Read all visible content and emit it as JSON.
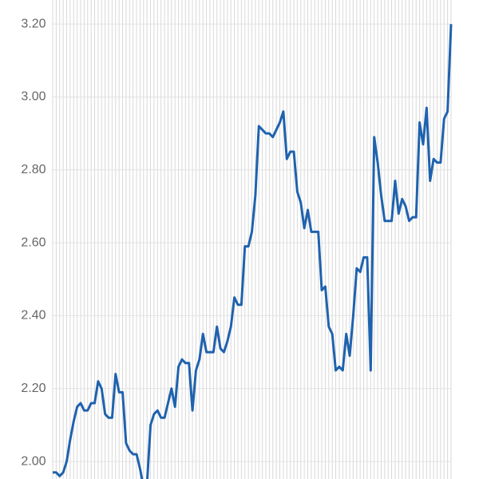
{
  "chart_data": {
    "type": "line",
    "categories": [
      null,
      null,
      null,
      null,
      null,
      null,
      null,
      null,
      null,
      null,
      null,
      null,
      null,
      null,
      null,
      null,
      null,
      null,
      null,
      null,
      null,
      null,
      null,
      null,
      null,
      null,
      null,
      null,
      null,
      null,
      null,
      null,
      null,
      null,
      null,
      null,
      null,
      null,
      null,
      null,
      null,
      null,
      null,
      null,
      null,
      null,
      null,
      null,
      null,
      null,
      null,
      null,
      null,
      null,
      null,
      null,
      null,
      null,
      null,
      null,
      null,
      null,
      null,
      null,
      null,
      null,
      null,
      null,
      null,
      null,
      null,
      null,
      null,
      null,
      null,
      null,
      null,
      null,
      null,
      null,
      null,
      null,
      null,
      null,
      null,
      null,
      null,
      null,
      null,
      null,
      null,
      null,
      null,
      null,
      null,
      null,
      null,
      null,
      null,
      null,
      null,
      null,
      null,
      null,
      null,
      null,
      null,
      null,
      null,
      null,
      null,
      null,
      null,
      null,
      null
    ],
    "series": [
      {
        "color": "#1f62ae",
        "values": [
          1.97,
          1.97,
          1.96,
          1.97,
          2.0,
          2.06,
          2.11,
          2.15,
          2.16,
          2.14,
          2.14,
          2.16,
          2.16,
          2.22,
          2.2,
          2.13,
          2.12,
          2.12,
          2.24,
          2.19,
          2.19,
          2.05,
          2.03,
          2.02,
          2.02,
          1.98,
          1.93,
          1.94,
          2.1,
          2.13,
          2.14,
          2.12,
          2.12,
          2.16,
          2.2,
          2.15,
          2.26,
          2.28,
          2.27,
          2.27,
          2.14,
          2.25,
          2.28,
          2.35,
          2.3,
          2.3,
          2.3,
          2.37,
          2.31,
          2.3,
          2.33,
          2.37,
          2.45,
          2.43,
          2.43,
          2.59,
          2.59,
          2.63,
          2.73,
          2.92,
          2.91,
          2.9,
          2.9,
          2.89,
          2.91,
          2.93,
          2.96,
          2.83,
          2.85,
          2.85,
          2.74,
          2.71,
          2.64,
          2.69,
          2.63,
          2.63,
          2.63,
          2.47,
          2.48,
          2.37,
          2.35,
          2.25,
          2.26,
          2.25,
          2.35,
          2.29,
          2.4,
          2.53,
          2.52,
          2.56,
          2.56,
          2.25,
          2.89,
          2.82,
          2.73,
          2.66,
          2.66,
          2.66,
          2.77,
          2.68,
          2.72,
          2.7,
          2.66,
          2.67,
          2.67,
          2.93,
          2.87,
          2.97,
          2.77,
          2.83,
          2.82,
          2.82,
          2.94,
          2.96,
          3.2
        ]
      }
    ],
    "ylim": [
      1.952,
      3.266
    ],
    "yticks": [
      {
        "value": 2,
        "label": "2.00"
      },
      {
        "value": 2.2,
        "label": "2.20"
      },
      {
        "value": 2.4,
        "label": "2.40"
      },
      {
        "value": 2.6,
        "label": "2.60"
      },
      {
        "value": 2.8,
        "label": "2.80"
      },
      {
        "value": 3,
        "label": "3.00"
      },
      {
        "value": 3.2,
        "label": "3.20"
      }
    ],
    "grid": true
  }
}
